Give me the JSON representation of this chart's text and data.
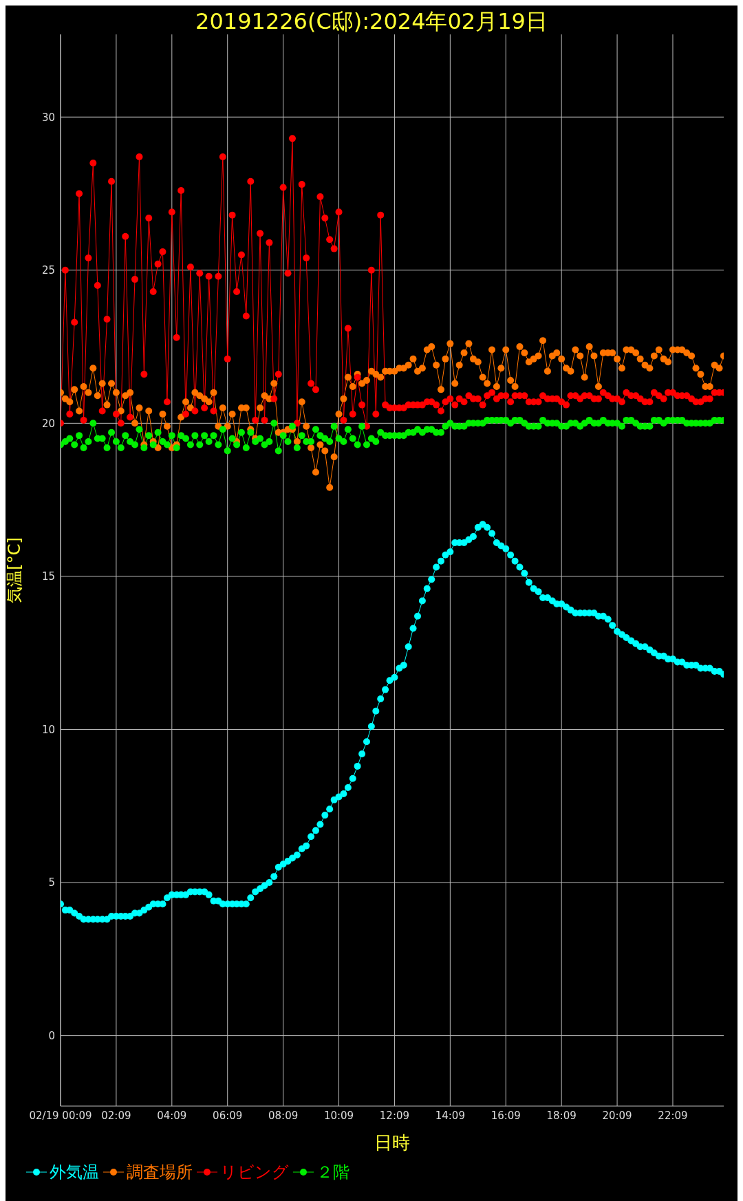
{
  "chart_data": {
    "type": "line",
    "title": "20191226(C邸):2024年02月19日",
    "xlabel": "日時",
    "ylabel": "気温[°C]",
    "x": [
      0.15,
      0.32,
      0.48,
      0.65,
      0.82,
      0.98,
      1.15,
      1.32,
      1.48,
      1.65,
      1.82,
      1.98,
      2.15,
      2.32,
      2.48,
      2.65,
      2.82,
      2.98,
      3.15,
      3.32,
      3.48,
      3.65,
      3.82,
      3.98,
      4.15,
      4.32,
      4.48,
      4.65,
      4.82,
      4.98,
      5.15,
      5.32,
      5.48,
      5.65,
      5.82,
      5.98,
      6.15,
      6.32,
      6.48,
      6.65,
      6.82,
      6.98,
      7.15,
      7.32,
      7.48,
      7.65,
      7.82,
      7.98,
      8.15,
      8.32,
      8.48,
      8.65,
      8.82,
      8.98,
      9.15,
      9.32,
      9.48,
      9.65,
      9.82,
      9.98,
      10.15,
      10.32,
      10.48,
      10.65,
      10.82,
      10.98,
      11.15,
      11.32,
      11.48,
      11.65,
      11.82,
      11.98,
      12.15,
      12.32,
      12.48,
      12.65,
      12.82,
      12.98,
      13.15,
      13.32,
      13.48,
      13.65,
      13.82,
      13.98,
      14.15,
      14.32,
      14.48,
      14.65,
      14.82,
      14.98,
      15.15,
      15.32,
      15.48,
      15.65,
      15.82,
      15.98,
      16.15,
      16.32,
      16.48,
      16.65,
      16.82,
      16.98,
      17.15,
      17.32,
      17.48,
      17.65,
      17.82,
      17.98,
      18.15,
      18.32,
      18.48,
      18.65,
      18.82,
      18.98,
      19.15,
      19.32,
      19.48,
      19.65,
      19.82,
      19.98,
      20.15,
      20.32,
      20.48,
      20.65,
      20.82,
      20.98,
      21.15,
      21.32,
      21.48,
      21.65,
      21.82,
      21.98,
      22.15,
      22.32,
      22.48,
      22.65,
      22.82,
      22.98,
      23.15,
      23.32,
      23.48,
      23.65,
      23.82,
      23.98
    ],
    "series": [
      {
        "name": "外気温",
        "color": "#00ffff",
        "values": [
          4.3,
          4.1,
          4.1,
          4.0,
          3.9,
          3.8,
          3.8,
          3.8,
          3.8,
          3.8,
          3.8,
          3.9,
          3.9,
          3.9,
          3.9,
          3.9,
          4.0,
          4.0,
          4.1,
          4.2,
          4.3,
          4.3,
          4.3,
          4.5,
          4.6,
          4.6,
          4.6,
          4.6,
          4.7,
          4.7,
          4.7,
          4.7,
          4.6,
          4.4,
          4.4,
          4.3,
          4.3,
          4.3,
          4.3,
          4.3,
          4.3,
          4.5,
          4.7,
          4.8,
          4.9,
          5.0,
          5.2,
          5.5,
          5.6,
          5.7,
          5.8,
          5.9,
          6.1,
          6.2,
          6.5,
          6.7,
          6.9,
          7.2,
          7.4,
          7.7,
          7.8,
          7.9,
          8.1,
          8.4,
          8.8,
          9.2,
          9.6,
          10.1,
          10.6,
          11.0,
          11.3,
          11.6,
          11.7,
          12.0,
          12.1,
          12.7,
          13.3,
          13.7,
          14.2,
          14.6,
          14.9,
          15.3,
          15.5,
          15.7,
          15.8,
          16.1,
          16.1,
          16.1,
          16.2,
          16.3,
          16.6,
          16.7,
          16.6,
          16.4,
          16.1,
          16.0,
          15.9,
          15.7,
          15.5,
          15.3,
          15.1,
          14.8,
          14.6,
          14.5,
          14.3,
          14.3,
          14.2,
          14.1,
          14.1,
          14.0,
          13.9,
          13.8,
          13.8,
          13.8,
          13.8,
          13.8,
          13.7,
          13.7,
          13.6,
          13.4,
          13.2,
          13.1,
          13.0,
          12.9,
          12.8,
          12.7,
          12.7,
          12.6,
          12.5,
          12.4,
          12.4,
          12.3,
          12.3,
          12.2,
          12.2,
          12.1,
          12.1,
          12.1,
          12.0,
          12.0,
          12.0,
          11.9,
          11.9,
          11.8
        ]
      },
      {
        "name": "調査場所",
        "color": "#ff7400",
        "values": [
          21.0,
          20.8,
          20.7,
          21.1,
          20.4,
          21.2,
          21.0,
          21.8,
          20.9,
          21.3,
          20.6,
          21.3,
          21.0,
          20.4,
          20.9,
          21.0,
          20.0,
          20.5,
          19.3,
          20.4,
          19.4,
          19.2,
          20.3,
          19.9,
          19.2,
          19.3,
          20.2,
          20.7,
          20.5,
          21.0,
          20.9,
          20.8,
          20.7,
          21.0,
          19.9,
          20.5,
          19.9,
          20.3,
          19.4,
          20.5,
          20.5,
          19.8,
          19.5,
          20.5,
          20.9,
          20.8,
          21.3,
          19.7,
          19.7,
          19.8,
          19.8,
          19.4,
          20.7,
          19.9,
          19.2,
          18.4,
          19.3,
          19.1,
          17.9,
          18.9,
          20.3,
          20.8,
          21.5,
          21.2,
          21.6,
          21.3,
          21.4,
          21.7,
          21.6,
          21.5,
          21.7,
          21.7,
          21.7,
          21.8,
          21.8,
          21.9,
          22.1,
          21.7,
          21.8,
          22.4,
          22.5,
          21.9,
          21.1,
          22.1,
          22.6,
          21.3,
          21.9,
          22.3,
          22.6,
          22.1,
          22.0,
          21.5,
          21.3,
          22.4,
          21.2,
          21.8,
          22.4,
          21.4,
          21.2,
          22.5,
          22.3,
          22.0,
          22.1,
          22.2,
          22.7,
          21.7,
          22.2,
          22.3,
          22.1,
          21.8,
          21.7,
          22.4,
          22.2,
          21.5,
          22.5,
          22.2,
          21.2,
          22.3,
          22.3,
          22.3,
          22.1,
          21.8,
          22.4,
          22.4,
          22.3,
          22.1,
          21.9,
          21.8,
          22.2,
          22.4,
          22.1,
          22.0,
          22.4,
          22.4,
          22.4,
          22.3,
          22.2,
          21.8,
          21.6,
          21.2,
          21.2,
          21.9,
          21.8,
          22.2
        ]
      },
      {
        "name": "リビング",
        "color": "#ff0000",
        "values": [
          20.0,
          25.0,
          20.3,
          23.3,
          27.5,
          20.1,
          25.4,
          28.5,
          24.5,
          20.4,
          23.4,
          27.9,
          20.3,
          20.0,
          26.1,
          20.2,
          24.7,
          28.7,
          21.6,
          26.7,
          24.3,
          25.2,
          25.6,
          20.7,
          26.9,
          22.8,
          27.6,
          20.3,
          25.1,
          20.4,
          24.9,
          20.5,
          24.8,
          20.4,
          24.8,
          28.7,
          22.1,
          26.8,
          24.3,
          25.5,
          23.5,
          27.9,
          20.1,
          26.2,
          20.1,
          25.9,
          20.8,
          21.6,
          27.7,
          24.9,
          29.3,
          20.0,
          27.8,
          25.4,
          21.3,
          21.1,
          27.4,
          26.7,
          26.0,
          25.7,
          26.9,
          20.1,
          23.1,
          20.3,
          21.5,
          20.6,
          19.9,
          25.0,
          20.3,
          26.8,
          20.6,
          20.5,
          20.5,
          20.5,
          20.5,
          20.6,
          20.6,
          20.6,
          20.6,
          20.7,
          20.7,
          20.6,
          20.4,
          20.7,
          20.8,
          20.6,
          20.8,
          20.7,
          20.9,
          20.8,
          20.8,
          20.6,
          20.9,
          21.0,
          20.8,
          20.9,
          20.9,
          20.7,
          20.9,
          20.9,
          20.9,
          20.7,
          20.7,
          20.7,
          20.9,
          20.8,
          20.8,
          20.8,
          20.7,
          20.6,
          20.9,
          20.9,
          20.8,
          20.9,
          20.9,
          20.8,
          20.8,
          21.0,
          20.9,
          20.8,
          20.8,
          20.7,
          21.0,
          20.9,
          20.9,
          20.8,
          20.7,
          20.7,
          21.0,
          20.9,
          20.8,
          21.0,
          21.0,
          20.9,
          20.9,
          20.9,
          20.8,
          20.7,
          20.7,
          20.8,
          20.8,
          21.0,
          21.0,
          21.0
        ]
      },
      {
        "name": "２階",
        "color": "#00ee00",
        "values": [
          19.3,
          19.4,
          19.5,
          19.3,
          19.6,
          19.2,
          19.4,
          20.0,
          19.5,
          19.5,
          19.2,
          19.7,
          19.4,
          19.2,
          19.6,
          19.4,
          19.3,
          19.8,
          19.2,
          19.6,
          19.3,
          19.7,
          19.4,
          19.3,
          19.6,
          19.2,
          19.6,
          19.5,
          19.3,
          19.6,
          19.3,
          19.6,
          19.4,
          19.6,
          19.3,
          19.8,
          19.1,
          19.5,
          19.3,
          19.7,
          19.2,
          19.7,
          19.4,
          19.5,
          19.3,
          19.4,
          20.0,
          19.1,
          19.6,
          19.4,
          19.9,
          19.2,
          19.6,
          19.4,
          19.4,
          19.8,
          19.6,
          19.5,
          19.4,
          19.9,
          19.5,
          19.4,
          19.8,
          19.5,
          19.3,
          19.9,
          19.3,
          19.5,
          19.4,
          19.7,
          19.6,
          19.6,
          19.6,
          19.6,
          19.6,
          19.7,
          19.7,
          19.8,
          19.7,
          19.8,
          19.8,
          19.7,
          19.7,
          19.9,
          20.0,
          19.9,
          19.9,
          19.9,
          20.0,
          20.0,
          20.0,
          20.0,
          20.1,
          20.1,
          20.1,
          20.1,
          20.1,
          20.0,
          20.1,
          20.1,
          20.0,
          19.9,
          19.9,
          19.9,
          20.1,
          20.0,
          20.0,
          20.0,
          19.9,
          19.9,
          20.0,
          20.0,
          19.9,
          20.0,
          20.1,
          20.0,
          20.0,
          20.1,
          20.0,
          20.0,
          20.0,
          19.9,
          20.1,
          20.1,
          20.0,
          19.9,
          19.9,
          19.9,
          20.1,
          20.1,
          20.0,
          20.1,
          20.1,
          20.1,
          20.1,
          20.0,
          20.0,
          20.0,
          20.0,
          20.0,
          20.0,
          20.1,
          20.1,
          20.1
        ]
      }
    ],
    "xlim": [
      0.15,
      23.98
    ],
    "xticks": [
      {
        "value": 0.15,
        "label": "02/19 00:09"
      },
      {
        "value": 2.15,
        "label": "02:09"
      },
      {
        "value": 4.15,
        "label": "04:09"
      },
      {
        "value": 6.15,
        "label": "06:09"
      },
      {
        "value": 8.15,
        "label": "08:09"
      },
      {
        "value": 10.15,
        "label": "10:09"
      },
      {
        "value": 12.15,
        "label": "12:09"
      },
      {
        "value": 14.15,
        "label": "14:09"
      },
      {
        "value": 16.15,
        "label": "16:09"
      },
      {
        "value": 18.15,
        "label": "18:09"
      },
      {
        "value": 20.15,
        "label": "20:09"
      },
      {
        "value": 22.15,
        "label": "22:09"
      }
    ],
    "ylim": [
      -2.3,
      32.7
    ],
    "yticks": [
      0,
      5,
      10,
      15,
      20,
      25,
      30
    ],
    "grid": true,
    "legend": "bottom left",
    "marker": "circle",
    "line_style": "solid"
  }
}
